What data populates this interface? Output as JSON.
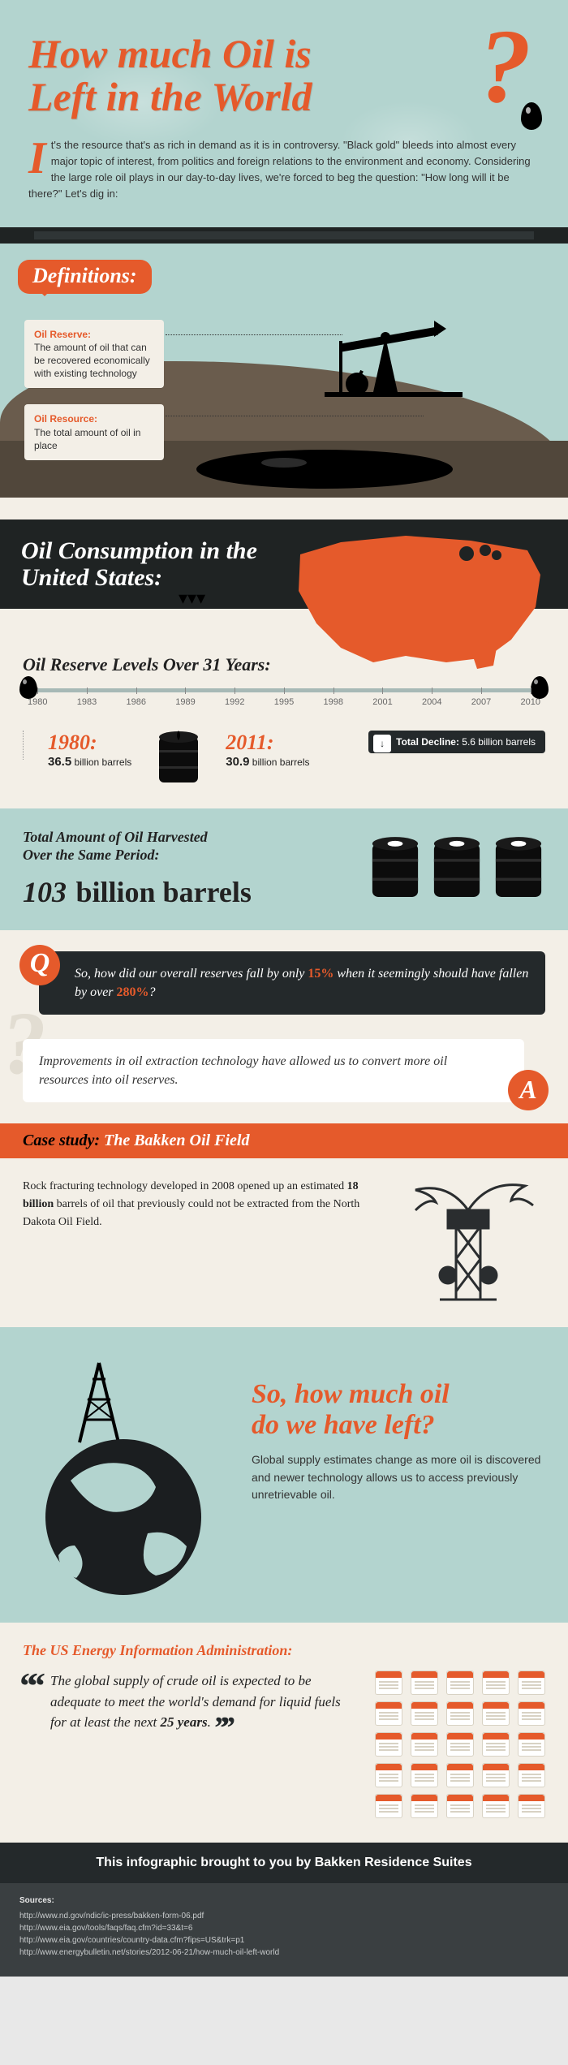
{
  "colors": {
    "accent": "#e55a2b",
    "teal": "#b3d4cf",
    "cream": "#f3efe7",
    "dark": "#24292b",
    "dark2": "#1f2323",
    "brown1": "#6a5c4d",
    "brown2": "#51473b"
  },
  "header": {
    "title_line1": "How much Oil is",
    "title_line2": "Left in the World",
    "intro_first": "I",
    "intro": "t's the resource that's as rich in demand as it is in controversy. \"Black gold\" bleeds into almost every major topic of interest, from politics and foreign relations to the environment and economy. Considering the large role oil plays in our day-to-day lives, we're forced to beg the question: \"How long will it be there?\" Let's dig in:"
  },
  "definitions": {
    "heading": "Definitions:",
    "reserve_title": "Oil Reserve:",
    "reserve_body": "The amount of oil that can be recovered economically with existing technology",
    "resource_title": "Oil Resource:",
    "resource_body": "The total amount of oil in place"
  },
  "us": {
    "heading": "Oil Consumption in the United States:",
    "reserve_heading": "Oil Reserve Levels Over 31 Years:",
    "ticks": [
      "1980",
      "1983",
      "1986",
      "1989",
      "1992",
      "1995",
      "1998",
      "2001",
      "2004",
      "2007",
      "2010"
    ],
    "y1980_label": "1980:",
    "y1980_val_num": "36.5",
    "y1980_val_unit": " billion barrels",
    "y2011_label": "2011:",
    "y2011_val_num": "30.9",
    "y2011_val_unit": " billion barrels",
    "decline_label": "Total Decline: ",
    "decline_val": "5.6 billion barrels"
  },
  "harvested": {
    "line1": "Total Amount of Oil Harvested",
    "line2": "Over the Same Period:",
    "big_num": "103",
    "big_unit": "billion barrels"
  },
  "qa": {
    "q_pre": "So, how did our overall reserves fall by only ",
    "q_b1": "15%",
    "q_mid": " when it seemingly should have fallen by over ",
    "q_b2": "280%",
    "q_post": "?",
    "a": "Improvements in oil extraction technology have allowed us to convert more oil resources into oil reserves."
  },
  "case": {
    "head_label": "Case study:",
    "head_subject": " The Bakken Oil Field",
    "body_pre": "Rock fracturing technology developed in 2008 opened up an estimated ",
    "body_b": "18 billion",
    "body_post": " barrels of oil that previously could not be extracted from the North Dakota Oil Field."
  },
  "left": {
    "heading_l1": "So, how much oil",
    "heading_l2": "do we have left?",
    "body": "Global supply estimates change as more oil is discovered and newer technology allows us to access previously unretrievable oil."
  },
  "eia": {
    "heading": "The US Energy Information Administration:",
    "quote_pre": "The global supply of crude oil is expected to be adequate to meet the world's demand for liquid fuels for at least the next ",
    "quote_b": "25 years",
    "quote_post": ".",
    "calendar_count": 25
  },
  "footer": {
    "credit": "This infographic brought to you by Bakken Residence Suites",
    "sources_label": "Sources:",
    "sources": [
      "http://www.nd.gov/ndic/ic-press/bakken-form-06.pdf",
      "http://www.eia.gov/tools/faqs/faq.cfm?id=33&t=6",
      "http://www.eia.gov/countries/country-data.cfm?fips=US&trk=p1",
      "http://www.energybulletin.net/stories/2012-06-21/how-much-oil-left-world"
    ]
  }
}
